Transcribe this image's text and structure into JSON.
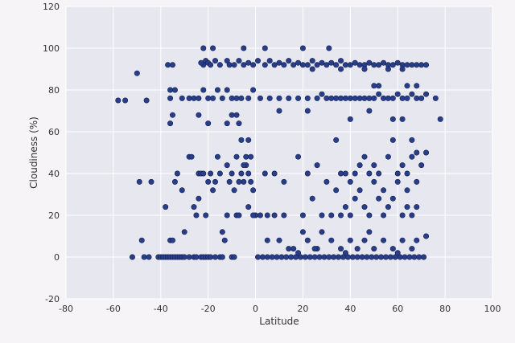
{
  "chart_data": {
    "type": "scatter",
    "title": "",
    "xlabel": "Latitude",
    "ylabel": "Cloudiness (%)",
    "xlim": [
      -80,
      100
    ],
    "ylim": [
      -20,
      120
    ],
    "xticks": [
      -80,
      -60,
      -40,
      -20,
      0,
      20,
      40,
      60,
      80,
      100
    ],
    "yticks": [
      -20,
      0,
      20,
      40,
      60,
      80,
      100,
      120
    ],
    "grid": true,
    "colors": {
      "plot_bg": "#e7e7f0",
      "grid": "#ffffff",
      "point": "#283e8a",
      "point_edge": "#15224f"
    },
    "points": [
      [
        -58,
        75
      ],
      [
        -55,
        75
      ],
      [
        -46,
        75
      ],
      [
        -44,
        36
      ],
      [
        -49,
        36
      ],
      [
        -52,
        0
      ],
      [
        -47,
        0
      ],
      [
        -45,
        0
      ],
      [
        -48,
        8
      ],
      [
        -50,
        88
      ],
      [
        -41,
        0
      ],
      [
        -40,
        0
      ],
      [
        -39,
        0
      ],
      [
        -38,
        0
      ],
      [
        -37,
        0
      ],
      [
        -36,
        0
      ],
      [
        -35,
        0
      ],
      [
        -34,
        0
      ],
      [
        -33,
        0
      ],
      [
        -32,
        0
      ],
      [
        -31,
        0
      ],
      [
        -30,
        0
      ],
      [
        -28,
        0
      ],
      [
        -26,
        0
      ],
      [
        -25,
        0
      ],
      [
        -23,
        0
      ],
      [
        -22,
        0
      ],
      [
        -21,
        0
      ],
      [
        -20,
        0
      ],
      [
        -19,
        0
      ],
      [
        -17,
        0
      ],
      [
        -15,
        0
      ],
      [
        -14,
        0
      ],
      [
        -10,
        0
      ],
      [
        -9,
        0
      ],
      [
        -38,
        24
      ],
      [
        -36,
        8
      ],
      [
        -35,
        8
      ],
      [
        -34,
        36
      ],
      [
        -33,
        40
      ],
      [
        -31,
        32
      ],
      [
        -30,
        12
      ],
      [
        -28,
        48
      ],
      [
        -27,
        48
      ],
      [
        -26,
        24
      ],
      [
        -25,
        20
      ],
      [
        -24,
        40
      ],
      [
        -23,
        40
      ],
      [
        -22,
        40
      ],
      [
        -21,
        20
      ],
      [
        -20,
        36
      ],
      [
        -19,
        40
      ],
      [
        -18,
        32
      ],
      [
        -17,
        36
      ],
      [
        -16,
        48
      ],
      [
        -15,
        40
      ],
      [
        -14,
        12
      ],
      [
        -13,
        8
      ],
      [
        -12,
        44
      ],
      [
        -11,
        36
      ],
      [
        -10,
        40
      ],
      [
        -9,
        32
      ],
      [
        -8,
        20
      ],
      [
        -7,
        20
      ],
      [
        -6,
        40
      ],
      [
        -5,
        36
      ],
      [
        -4,
        44
      ],
      [
        -3,
        40
      ],
      [
        -2,
        36
      ],
      [
        -1,
        32
      ],
      [
        0,
        20
      ],
      [
        -6,
        56
      ],
      [
        -3,
        56
      ],
      [
        -8,
        48
      ],
      [
        -4,
        48
      ],
      [
        -2,
        48
      ],
      [
        -5,
        44
      ],
      [
        -7,
        36
      ],
      [
        -3,
        24
      ],
      [
        -1,
        20
      ],
      [
        2,
        20
      ],
      [
        -12,
        20
      ],
      [
        -24,
        28
      ],
      [
        -37,
        92
      ],
      [
        -35,
        92
      ],
      [
        -36,
        80
      ],
      [
        -34,
        80
      ],
      [
        -35,
        68
      ],
      [
        -36,
        64
      ],
      [
        -36,
        76
      ],
      [
        -31,
        76
      ],
      [
        -28,
        76
      ],
      [
        -26,
        76
      ],
      [
        -24,
        76
      ],
      [
        -22,
        80
      ],
      [
        -20,
        76
      ],
      [
        -18,
        76
      ],
      [
        -16,
        80
      ],
      [
        -14,
        76
      ],
      [
        -12,
        80
      ],
      [
        -10,
        76
      ],
      [
        -8,
        76
      ],
      [
        -6,
        76
      ],
      [
        -3,
        76
      ],
      [
        -1,
        80
      ],
      [
        -22,
        92
      ],
      [
        -21,
        94
      ],
      [
        -20,
        93
      ],
      [
        -19,
        92
      ],
      [
        -23,
        93
      ],
      [
        -17,
        94
      ],
      [
        -15,
        92
      ],
      [
        -12,
        94
      ],
      [
        -11,
        92
      ],
      [
        -9,
        92
      ],
      [
        -7,
        94
      ],
      [
        -5,
        92
      ],
      [
        -3,
        93
      ],
      [
        -1,
        92
      ],
      [
        1,
        94
      ],
      [
        -22,
        100
      ],
      [
        -18,
        100
      ],
      [
        -5,
        100
      ],
      [
        4,
        100
      ],
      [
        -12,
        64
      ],
      [
        -10,
        68
      ],
      [
        -8,
        68
      ],
      [
        -7,
        64
      ],
      [
        -20,
        64
      ],
      [
        -24,
        68
      ],
      [
        1,
        0
      ],
      [
        3,
        0
      ],
      [
        5,
        0
      ],
      [
        7,
        0
      ],
      [
        9,
        0
      ],
      [
        11,
        0
      ],
      [
        13,
        0
      ],
      [
        15,
        0
      ],
      [
        17,
        0
      ],
      [
        19,
        0
      ],
      [
        21,
        0
      ],
      [
        23,
        0
      ],
      [
        25,
        0
      ],
      [
        27,
        0
      ],
      [
        29,
        0
      ],
      [
        31,
        0
      ],
      [
        33,
        0
      ],
      [
        35,
        0
      ],
      [
        37,
        0
      ],
      [
        39,
        0
      ],
      [
        41,
        0
      ],
      [
        43,
        0
      ],
      [
        45,
        0
      ],
      [
        47,
        0
      ],
      [
        49,
        0
      ],
      [
        51,
        0
      ],
      [
        53,
        0
      ],
      [
        55,
        0
      ],
      [
        57,
        0
      ],
      [
        59,
        0
      ],
      [
        61,
        0
      ],
      [
        63,
        0
      ],
      [
        65,
        0
      ],
      [
        67,
        0
      ],
      [
        69,
        0
      ],
      [
        71,
        0
      ],
      [
        16,
        4
      ],
      [
        18,
        2
      ],
      [
        26,
        4
      ],
      [
        38,
        2
      ],
      [
        60,
        2
      ],
      [
        5,
        8
      ],
      [
        10,
        8
      ],
      [
        14,
        4
      ],
      [
        20,
        12
      ],
      [
        22,
        8
      ],
      [
        25,
        4
      ],
      [
        28,
        12
      ],
      [
        32,
        8
      ],
      [
        36,
        4
      ],
      [
        40,
        8
      ],
      [
        43,
        4
      ],
      [
        46,
        8
      ],
      [
        48,
        12
      ],
      [
        50,
        4
      ],
      [
        54,
        8
      ],
      [
        58,
        4
      ],
      [
        62,
        8
      ],
      [
        66,
        4
      ],
      [
        68,
        8
      ],
      [
        72,
        10
      ],
      [
        5,
        20
      ],
      [
        8,
        20
      ],
      [
        12,
        20
      ],
      [
        20,
        20
      ],
      [
        24,
        28
      ],
      [
        28,
        20
      ],
      [
        32,
        20
      ],
      [
        36,
        20
      ],
      [
        38,
        24
      ],
      [
        40,
        20
      ],
      [
        42,
        28
      ],
      [
        46,
        24
      ],
      [
        48,
        20
      ],
      [
        52,
        28
      ],
      [
        54,
        20
      ],
      [
        56,
        24
      ],
      [
        58,
        28
      ],
      [
        62,
        20
      ],
      [
        64,
        24
      ],
      [
        66,
        20
      ],
      [
        68,
        24
      ],
      [
        34,
        32
      ],
      [
        40,
        36
      ],
      [
        44,
        32
      ],
      [
        50,
        36
      ],
      [
        54,
        32
      ],
      [
        60,
        36
      ],
      [
        64,
        32
      ],
      [
        68,
        36
      ],
      [
        4,
        40
      ],
      [
        8,
        40
      ],
      [
        12,
        36
      ],
      [
        18,
        48
      ],
      [
        22,
        40
      ],
      [
        26,
        44
      ],
      [
        30,
        36
      ],
      [
        34,
        56
      ],
      [
        36,
        40
      ],
      [
        38,
        40
      ],
      [
        42,
        40
      ],
      [
        44,
        44
      ],
      [
        46,
        48
      ],
      [
        48,
        40
      ],
      [
        50,
        44
      ],
      [
        52,
        40
      ],
      [
        56,
        48
      ],
      [
        60,
        40
      ],
      [
        62,
        44
      ],
      [
        64,
        40
      ],
      [
        66,
        48
      ],
      [
        68,
        50
      ],
      [
        70,
        44
      ],
      [
        72,
        50
      ],
      [
        66,
        56
      ],
      [
        58,
        56
      ],
      [
        2,
        76
      ],
      [
        6,
        76
      ],
      [
        10,
        76
      ],
      [
        14,
        76
      ],
      [
        18,
        76
      ],
      [
        22,
        76
      ],
      [
        26,
        76
      ],
      [
        28,
        78
      ],
      [
        30,
        76
      ],
      [
        32,
        76
      ],
      [
        34,
        76
      ],
      [
        36,
        76
      ],
      [
        38,
        76
      ],
      [
        40,
        76
      ],
      [
        42,
        76
      ],
      [
        44,
        76
      ],
      [
        46,
        76
      ],
      [
        48,
        76
      ],
      [
        50,
        76
      ],
      [
        52,
        78
      ],
      [
        54,
        76
      ],
      [
        56,
        76
      ],
      [
        58,
        76
      ],
      [
        60,
        78
      ],
      [
        62,
        76
      ],
      [
        64,
        76
      ],
      [
        66,
        78
      ],
      [
        68,
        76
      ],
      [
        70,
        76
      ],
      [
        72,
        78
      ],
      [
        76,
        76
      ],
      [
        78,
        66
      ],
      [
        50,
        82
      ],
      [
        52,
        82
      ],
      [
        64,
        82
      ],
      [
        68,
        82
      ],
      [
        58,
        66
      ],
      [
        62,
        66
      ],
      [
        40,
        66
      ],
      [
        48,
        70
      ],
      [
        10,
        70
      ],
      [
        22,
        70
      ],
      [
        4,
        92
      ],
      [
        6,
        94
      ],
      [
        8,
        92
      ],
      [
        10,
        93
      ],
      [
        12,
        92
      ],
      [
        14,
        94
      ],
      [
        16,
        92
      ],
      [
        18,
        93
      ],
      [
        20,
        92
      ],
      [
        22,
        92
      ],
      [
        24,
        94
      ],
      [
        26,
        92
      ],
      [
        28,
        93
      ],
      [
        30,
        92
      ],
      [
        32,
        93
      ],
      [
        34,
        92
      ],
      [
        36,
        94
      ],
      [
        38,
        92
      ],
      [
        40,
        92
      ],
      [
        42,
        93
      ],
      [
        44,
        92
      ],
      [
        46,
        92
      ],
      [
        48,
        93
      ],
      [
        50,
        92
      ],
      [
        52,
        92
      ],
      [
        54,
        93
      ],
      [
        56,
        92
      ],
      [
        58,
        92
      ],
      [
        60,
        93
      ],
      [
        62,
        92
      ],
      [
        64,
        92
      ],
      [
        66,
        92
      ],
      [
        68,
        92
      ],
      [
        70,
        92
      ],
      [
        72,
        92
      ],
      [
        20,
        100
      ],
      [
        31,
        100
      ],
      [
        24,
        90
      ],
      [
        36,
        90
      ],
      [
        46,
        90
      ],
      [
        56,
        90
      ],
      [
        62,
        90
      ]
    ]
  }
}
